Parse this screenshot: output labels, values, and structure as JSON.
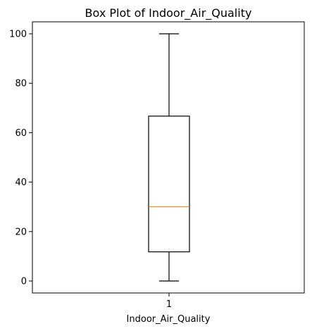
{
  "chart_data": {
    "type": "box",
    "title": "Box Plot of Indoor_Air_Quality",
    "xlabel": "Indoor_Air_Quality",
    "ylabel": "",
    "categories": [
      "1"
    ],
    "ylim": [
      -5,
      105
    ],
    "yticks": [
      0,
      20,
      40,
      60,
      80,
      100
    ],
    "boxes": [
      {
        "category": "1",
        "whisker_low": 0,
        "q1": 11.8,
        "median": 30,
        "q3": 66.7,
        "whisker_high": 100
      }
    ],
    "grid": false,
    "colors": {
      "box": "#000000",
      "median": "#ff7f0e"
    }
  }
}
